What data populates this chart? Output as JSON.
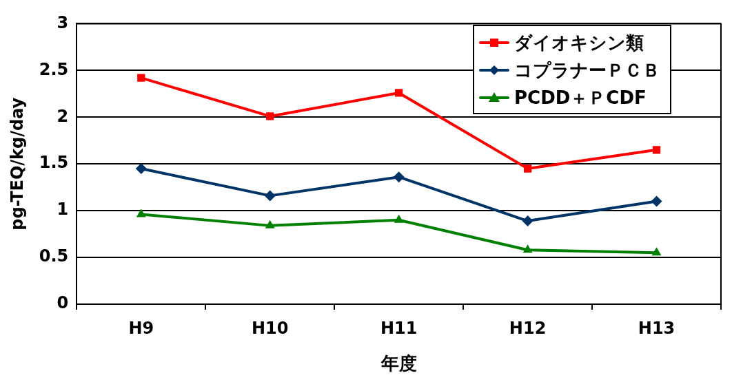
{
  "chart_data": {
    "type": "line",
    "xlabel": "年度",
    "ylabel": "pg-TEQ/kg/day",
    "categories": [
      "H9",
      "H10",
      "H11",
      "H12",
      "H13"
    ],
    "series": [
      {
        "name": "ダイオキシン類",
        "color": "#ff0000",
        "marker": "square",
        "values": [
          2.42,
          2.01,
          2.26,
          1.45,
          1.65
        ]
      },
      {
        "name": "コプラナーＰＣＢ",
        "color": "#003366",
        "marker": "diamond",
        "values": [
          1.45,
          1.16,
          1.36,
          0.89,
          1.1
        ]
      },
      {
        "name": "PCDD＋ＰCDF",
        "color": "#008000",
        "marker": "triangle",
        "values": [
          0.96,
          0.84,
          0.9,
          0.58,
          0.55
        ]
      }
    ],
    "ylim": [
      0,
      3
    ],
    "yticks": [
      0,
      0.5,
      1,
      1.5,
      2,
      2.5,
      3
    ],
    "grid": "y",
    "legend": "top right",
    "line_style": "solid"
  }
}
